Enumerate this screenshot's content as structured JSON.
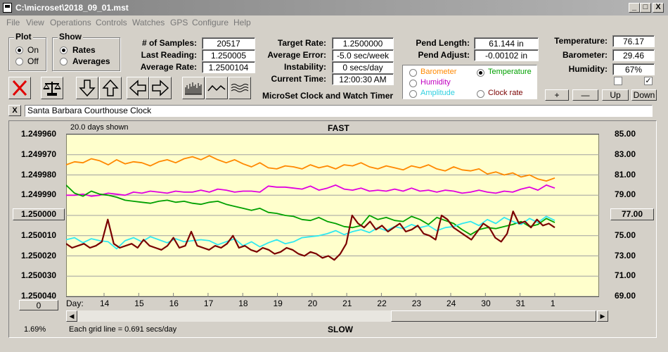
{
  "window": {
    "title": "C:\\microset\\2018_09_01.mst",
    "min": "_",
    "max": "□",
    "close": "X"
  },
  "menu": [
    "File",
    "View",
    "Operations",
    "Controls",
    "Watches",
    "GPS",
    "Configure",
    "Help"
  ],
  "plot_group": {
    "label": "Plot",
    "on": "On",
    "off": "Off",
    "selected": "On"
  },
  "show_group": {
    "label": "Show",
    "rates": "Rates",
    "averages": "Averages",
    "selected": "Rates"
  },
  "stats": {
    "samples_label": "# of Samples:",
    "samples": "20517",
    "last_label": "Last Reading:",
    "last": "1.250005",
    "avg_label": "Average Rate:",
    "avg": "1.2500104",
    "target_label": "Target Rate:",
    "target": "1.2500000",
    "avgerr_label": "Average Error:",
    "avgerr": "-5.0 sec/week",
    "instab_label": "Instability:",
    "instab": "0 secs/day",
    "time_label": "Current Time:",
    "time": "12:00:30 AM",
    "pendlen_label": "Pend Length:",
    "pendlen": "61.144 in",
    "pendadj_label": "Pend Adjust:",
    "pendadj": "-0.00102 in",
    "temp_label": "Temperature:",
    "temp": "76.17",
    "baro_label": "Barometer:",
    "baro": "29.46",
    "hum_label": "Humidity:",
    "hum": "67%"
  },
  "app_name": "MicroSet Clock and Watch Timer",
  "series_selector": {
    "barometer": "Barometer",
    "temperature": "Temperature",
    "humidity": "Humidity",
    "amplitude": "Amplitude",
    "clockrate": "Clock rate",
    "selected": "Temperature"
  },
  "right_buttons": {
    "plus": "+",
    "minus": "—",
    "up": "Up",
    "down": "Down"
  },
  "right_checks": {
    "left": "",
    "right": "✓"
  },
  "name_close": "X",
  "clock_name": "Santa Barbara Courthouse Clock",
  "left_scale_button": "1.250000",
  "right_scale_button": "77.00",
  "zero_button": "0",
  "footer": {
    "percent": "1.69%",
    "grid": "Each grid line = 0.691 secs/day",
    "slow": "SLOW"
  },
  "colors": {
    "barometer": "#ff8800",
    "humidity": "#e000e0",
    "temperature": "#00a000",
    "amplitude": "#30e8f0",
    "clockrate": "#7a0000",
    "chart_bg": "#ffffcc"
  },
  "chart_data": {
    "type": "line",
    "title": "FAST",
    "subtitle": "20.0 days shown",
    "bottom_label": "SLOW",
    "xlabel": "Day:",
    "x_ticks": [
      "14",
      "15",
      "16",
      "17",
      "18",
      "19",
      "20",
      "21",
      "22",
      "23",
      "24",
      "30",
      "31",
      "1"
    ],
    "y_left_ticks": [
      "1.249960",
      "1.249970",
      "1.249980",
      "1.249990",
      "1.250000",
      "1.250010",
      "1.250020",
      "1.250030",
      "1.250040"
    ],
    "y_left_range": [
      1.24996,
      1.25004
    ],
    "y_right_ticks": [
      "85.00",
      "83.00",
      "81.00",
      "79.00",
      "77.00",
      "75.00",
      "73.00",
      "71.00",
      "69.00"
    ],
    "y_right_range": [
      85,
      69
    ],
    "grid": true,
    "series": [
      {
        "name": "Barometer",
        "key": "barometer",
        "axis": "right",
        "values": [
          82.0,
          82.3,
          82.2,
          82.6,
          82.4,
          82.0,
          82.5,
          82.1,
          82.3,
          82.2,
          81.9,
          82.3,
          82.5,
          82.2,
          82.6,
          82.8,
          82.5,
          82.9,
          82.5,
          82.2,
          82.5,
          82.1,
          81.8,
          82.2,
          81.7,
          81.6,
          81.9,
          81.8,
          81.6,
          82.0,
          81.7,
          81.9,
          81.6,
          82.0,
          81.9,
          82.2,
          81.8,
          81.6,
          81.9,
          81.7,
          81.5,
          81.9,
          81.7,
          82.0,
          81.6,
          81.4,
          81.8,
          81.5,
          81.4,
          81.6,
          81.1,
          81.3,
          81.0,
          81.2,
          80.8,
          81.0,
          80.6,
          80.4,
          80.7
        ]
      },
      {
        "name": "Humidity",
        "key": "humidity",
        "axis": "right",
        "values": [
          79.0,
          79.0,
          79.1,
          78.9,
          79.0,
          79.2,
          79.1,
          79.0,
          79.3,
          79.2,
          79.4,
          79.3,
          79.2,
          79.4,
          79.3,
          79.3,
          79.5,
          79.3,
          79.6,
          79.5,
          79.3,
          79.4,
          79.4,
          79.3,
          79.9,
          79.8,
          79.8,
          79.7,
          79.6,
          79.9,
          79.5,
          79.7,
          80.0,
          79.6,
          79.5,
          79.7,
          79.4,
          79.5,
          79.4,
          79.6,
          79.4,
          79.7,
          79.4,
          79.5,
          79.3,
          79.5,
          79.4,
          79.2,
          79.3,
          79.5,
          79.3,
          79.2,
          79.4,
          79.3,
          79.6,
          79.8,
          79.5,
          80.0,
          79.7
        ]
      },
      {
        "name": "Temperature",
        "key": "temperature",
        "axis": "right",
        "values": [
          80.0,
          79.2,
          78.9,
          79.4,
          79.1,
          79.0,
          78.8,
          78.5,
          78.4,
          78.3,
          78.2,
          78.4,
          78.5,
          78.3,
          78.4,
          78.2,
          78.1,
          78.3,
          78.4,
          78.1,
          77.9,
          77.7,
          77.5,
          77.7,
          77.3,
          77.2,
          77.0,
          76.9,
          76.6,
          76.5,
          76.8,
          76.4,
          76.2,
          75.9,
          75.8,
          76.0,
          77.0,
          76.6,
          76.8,
          76.5,
          76.4,
          76.9,
          76.6,
          76.1,
          76.8,
          76.5,
          76.2,
          75.6,
          75.1,
          75.6,
          75.8,
          75.7,
          75.9,
          76.1,
          76.4,
          75.9,
          76.1,
          76.7,
          76.3
        ]
      },
      {
        "name": "Amplitude",
        "key": "amplitude",
        "axis": "right",
        "values": [
          74.6,
          74.8,
          74.3,
          74.7,
          74.5,
          74.4,
          73.7,
          74.5,
          74.8,
          74.4,
          74.9,
          74.6,
          74.3,
          74.7,
          74.4,
          74.5,
          74.6,
          74.5,
          74.1,
          74.4,
          74.7,
          74.0,
          74.4,
          73.9,
          74.3,
          74.6,
          74.2,
          74.4,
          74.8,
          74.9,
          75.0,
          75.2,
          75.5,
          75.1,
          75.4,
          75.6,
          75.3,
          75.8,
          75.5,
          75.9,
          75.7,
          76.1,
          75.8,
          76.0,
          75.5,
          75.8,
          75.9,
          76.2,
          76.4,
          76.0,
          76.6,
          76.2,
          76.8,
          76.4,
          76.1,
          76.7,
          76.3,
          76.9,
          76.5
        ]
      },
      {
        "name": "Clock rate",
        "key": "clockrate",
        "axis": "left",
        "values": [
          1.250014,
          1.250016,
          1.250015,
          1.250014,
          1.250016,
          1.250015,
          1.250013,
          1.250002,
          1.250014,
          1.250016,
          1.250015,
          1.250014,
          1.250016,
          1.250012,
          1.250015,
          1.250016,
          1.250017,
          1.250015,
          1.250011,
          1.250016,
          1.250015,
          1.250008,
          1.250015,
          1.250016,
          1.250017,
          1.250015,
          1.250016,
          1.250014,
          1.25001,
          1.250016,
          1.250015,
          1.250017,
          1.250018,
          1.250016,
          1.250017,
          1.250019,
          1.250018,
          1.250016,
          1.250017,
          1.250019,
          1.25002,
          1.250018,
          1.250019,
          1.250021,
          1.25002,
          1.250022,
          1.250019,
          1.250014,
          1.25,
          1.250004,
          1.250006,
          1.250003,
          1.250007,
          1.250005,
          1.250008,
          1.250006,
          1.250004,
          1.250008,
          1.250007,
          1.250005,
          1.250009,
          1.25001,
          1.250012,
          1.25,
          1.250002,
          1.250006,
          1.250008,
          1.25001,
          1.250012,
          1.250008,
          1.250004,
          1.250006,
          1.250011,
          1.250013,
          1.250009,
          1.249998,
          1.250004,
          1.250003,
          1.250006,
          1.250002,
          1.250005,
          1.250004,
          1.250006
        ]
      }
    ]
  }
}
